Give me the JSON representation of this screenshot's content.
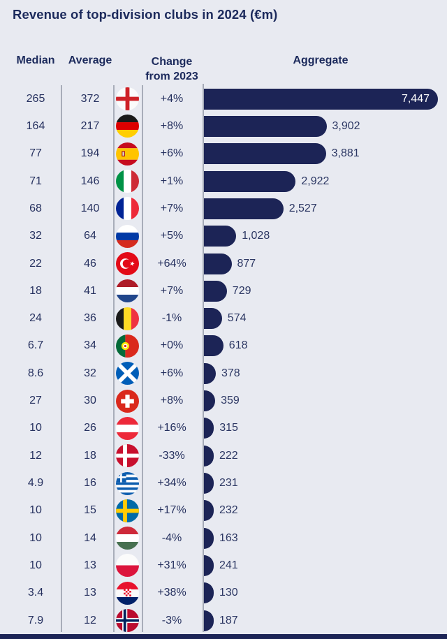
{
  "title": "Revenue of top-division clubs in 2024 (€m)",
  "columns": {
    "median": "Median",
    "average": "Average",
    "change_line1": "Change",
    "change_line2": "from 2023",
    "aggregate": "Aggregate"
  },
  "colors": {
    "background": "#e8eaf1",
    "bar_navy": "#1c2456",
    "title_text": "#1c2a5c",
    "body_text": "#26315f",
    "gridline": "#a8adb9",
    "bar_label_inside": "#ffffff"
  },
  "chart_data": {
    "type": "bar",
    "orientation": "horizontal",
    "title": "Revenue of top-division clubs in 2024 (€m)",
    "unit": "€m",
    "x_max": 7447,
    "legend": "none",
    "grid": "column-dividers-only",
    "columns": [
      "Median",
      "Average",
      "Country flag",
      "Change from 2023",
      "Aggregate"
    ],
    "rows": [
      {
        "country": "England",
        "flag": "england",
        "median": "265",
        "average": "372",
        "change": "+4%",
        "aggregate": 7447,
        "aggregate_label": "7,447"
      },
      {
        "country": "Germany",
        "flag": "germany",
        "median": "164",
        "average": "217",
        "change": "+8%",
        "aggregate": 3902,
        "aggregate_label": "3,902"
      },
      {
        "country": "Spain",
        "flag": "spain",
        "median": "77",
        "average": "194",
        "change": "+6%",
        "aggregate": 3881,
        "aggregate_label": "3,881"
      },
      {
        "country": "Italy",
        "flag": "italy",
        "median": "71",
        "average": "146",
        "change": "+1%",
        "aggregate": 2922,
        "aggregate_label": "2,922"
      },
      {
        "country": "France",
        "flag": "france",
        "median": "68",
        "average": "140",
        "change": "+7%",
        "aggregate": 2527,
        "aggregate_label": "2,527"
      },
      {
        "country": "Russia",
        "flag": "russia",
        "median": "32",
        "average": "64",
        "change": "+5%",
        "aggregate": 1028,
        "aggregate_label": "1,028"
      },
      {
        "country": "Turkey",
        "flag": "turkey",
        "median": "22",
        "average": "46",
        "change": "+64%",
        "aggregate": 877,
        "aggregate_label": "877"
      },
      {
        "country": "Netherlands",
        "flag": "netherlands",
        "median": "18",
        "average": "41",
        "change": "+7%",
        "aggregate": 729,
        "aggregate_label": "729"
      },
      {
        "country": "Belgium",
        "flag": "belgium",
        "median": "24",
        "average": "36",
        "change": "-1%",
        "aggregate": 574,
        "aggregate_label": "574"
      },
      {
        "country": "Portugal",
        "flag": "portugal",
        "median": "6.7",
        "average": "34",
        "change": "+0%",
        "aggregate": 618,
        "aggregate_label": "618"
      },
      {
        "country": "Scotland",
        "flag": "scotland",
        "median": "8.6",
        "average": "32",
        "change": "+6%",
        "aggregate": 378,
        "aggregate_label": "378"
      },
      {
        "country": "Switzerland",
        "flag": "switzerland",
        "median": "27",
        "average": "30",
        "change": "+8%",
        "aggregate": 359,
        "aggregate_label": "359"
      },
      {
        "country": "Austria",
        "flag": "austria",
        "median": "10",
        "average": "26",
        "change": "+16%",
        "aggregate": 315,
        "aggregate_label": "315"
      },
      {
        "country": "Denmark",
        "flag": "denmark",
        "median": "12",
        "average": "18",
        "change": "-33%",
        "aggregate": 222,
        "aggregate_label": "222"
      },
      {
        "country": "Greece",
        "flag": "greece",
        "median": "4.9",
        "average": "16",
        "change": "+34%",
        "aggregate": 231,
        "aggregate_label": "231"
      },
      {
        "country": "Sweden",
        "flag": "sweden",
        "median": "10",
        "average": "15",
        "change": "+17%",
        "aggregate": 232,
        "aggregate_label": "232"
      },
      {
        "country": "Hungary",
        "flag": "hungary",
        "median": "10",
        "average": "14",
        "change": "-4%",
        "aggregate": 163,
        "aggregate_label": "163"
      },
      {
        "country": "Poland",
        "flag": "poland",
        "median": "10",
        "average": "13",
        "change": "+31%",
        "aggregate": 241,
        "aggregate_label": "241"
      },
      {
        "country": "Croatia",
        "flag": "croatia",
        "median": "3.4",
        "average": "13",
        "change": "+38%",
        "aggregate": 130,
        "aggregate_label": "130"
      },
      {
        "country": "Norway",
        "flag": "norway",
        "median": "7.9",
        "average": "12",
        "change": "-3%",
        "aggregate": 187,
        "aggregate_label": "187"
      }
    ]
  }
}
